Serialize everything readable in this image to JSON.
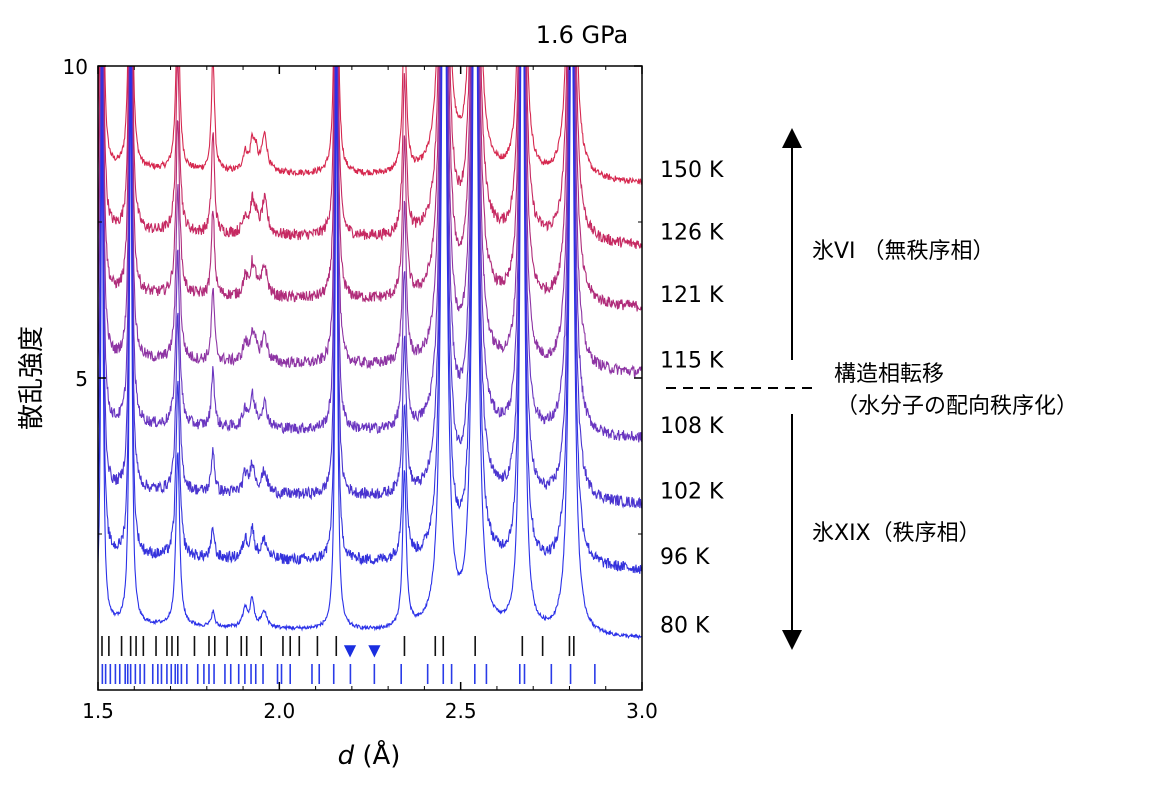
{
  "chart_data": {
    "type": "line",
    "title": "1.6 GPa",
    "xlabel_italic": "d",
    "xlabel_unit": " (Å)",
    "ylabel": "散乱強度",
    "xlim": [
      1.5,
      3.0
    ],
    "ylim": [
      0,
      10
    ],
    "xticks": [
      "1.5",
      "2.0",
      "2.5",
      "3.0"
    ],
    "yticks": [
      {
        "value": 10,
        "label": "10"
      },
      {
        "value": 5,
        "label": "5"
      }
    ],
    "series": [
      {
        "name": "150 K",
        "baseline": 8.35,
        "noise": 0.05,
        "color": "#d6284f"
      },
      {
        "name": "126 K",
        "baseline": 7.35,
        "noise": 0.09,
        "color": "#c62a62"
      },
      {
        "name": "121 K",
        "baseline": 6.35,
        "noise": 0.09,
        "color": "#b02c7a"
      },
      {
        "name": "115 K",
        "baseline": 5.3,
        "noise": 0.09,
        "color": "#8e35a4"
      },
      {
        "name": "108 K",
        "baseline": 4.25,
        "noise": 0.09,
        "color": "#6a36c0"
      },
      {
        "name": "102 K",
        "baseline": 3.2,
        "noise": 0.09,
        "color": "#4a34cf"
      },
      {
        "name": "96 K",
        "baseline": 2.15,
        "noise": 0.09,
        "color": "#3432dc"
      },
      {
        "name": "80 K",
        "baseline": 1.05,
        "noise": 0.03,
        "color": "#2a30e8"
      }
    ],
    "peaks_common": [
      {
        "x": 1.511,
        "h": 8.0,
        "w": 0.004
      },
      {
        "x": 1.59,
        "h": 9.0,
        "w": 0.004
      },
      {
        "x": 1.72,
        "h": 2.8,
        "w": 0.006
      },
      {
        "x": 1.817,
        "h": 0.25,
        "w": 0.005
      },
      {
        "x": 1.906,
        "h": 0.3,
        "w": 0.008
      },
      {
        "x": 1.925,
        "h": 0.45,
        "w": 0.006
      },
      {
        "x": 1.958,
        "h": 0.25,
        "w": 0.01
      },
      {
        "x": 2.157,
        "h": 9.0,
        "w": 0.004
      },
      {
        "x": 2.345,
        "h": 2.5,
        "w": 0.006
      },
      {
        "x": 2.454,
        "h": 14.0,
        "w": 0.008
      },
      {
        "x": 2.54,
        "h": 14.0,
        "w": 0.008
      },
      {
        "x": 2.67,
        "h": 14.0,
        "w": 0.006
      },
      {
        "x": 2.806,
        "h": 11.0,
        "w": 0.008
      }
    ],
    "peaks_ordered": [
      {
        "x": 1.817,
        "h": 1.6,
        "w": 0.005
      },
      {
        "x": 1.935,
        "h": 0.3,
        "w": 0.006
      },
      {
        "x": 1.96,
        "h": 0.35,
        "w": 0.008
      }
    ],
    "markers": {
      "symbol": "▼",
      "x": [
        2.195,
        2.262
      ],
      "y": 0.55,
      "color": "#1a2ee0"
    },
    "tick_rows": [
      {
        "name": "ice-vi-reflections",
        "color": "#111111",
        "x": [
          1.511,
          1.53,
          1.565,
          1.59,
          1.605,
          1.625,
          1.66,
          1.69,
          1.704,
          1.72,
          1.766,
          1.806,
          1.822,
          1.856,
          1.895,
          1.91,
          1.95,
          2.01,
          2.03,
          2.055,
          2.105,
          2.157,
          2.345,
          2.43,
          2.452,
          2.54,
          2.67,
          2.726,
          2.8,
          2.812
        ]
      },
      {
        "name": "ice-xix-reflections",
        "color": "#2a3ce8",
        "x": [
          1.512,
          1.521,
          1.534,
          1.548,
          1.56,
          1.575,
          1.582,
          1.59,
          1.603,
          1.616,
          1.628,
          1.651,
          1.665,
          1.675,
          1.69,
          1.702,
          1.713,
          1.72,
          1.73,
          1.745,
          1.775,
          1.792,
          1.806,
          1.82,
          1.85,
          1.866,
          1.888,
          1.905,
          1.922,
          1.935,
          1.955,
          1.995,
          2.006,
          2.03,
          2.09,
          2.11,
          2.15,
          2.196,
          2.262,
          2.336,
          2.409,
          2.452,
          2.475,
          2.539,
          2.571,
          2.663,
          2.676,
          2.75,
          2.803,
          2.87
        ]
      }
    ],
    "annotations": {
      "phase_vi": "氷VI （無秩序相）",
      "transition_line1": "構造相転移",
      "transition_line2": "（水分子の配向秩序化）",
      "phase_xix": "氷XIX（秩序相）"
    }
  }
}
